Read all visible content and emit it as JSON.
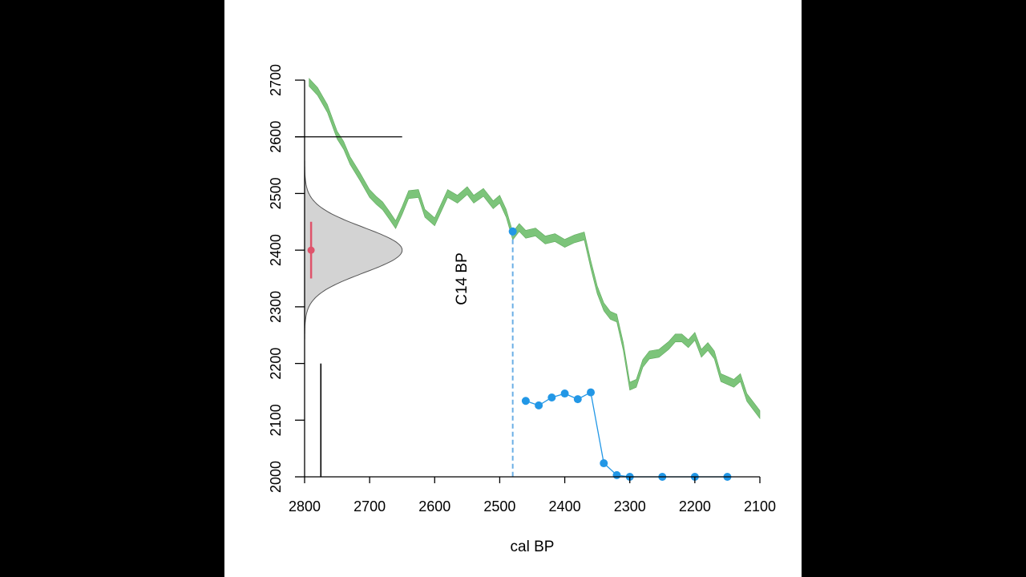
{
  "chart_data": {
    "type": "line",
    "xlabel": "cal BP",
    "ylabel": "C14 BP",
    "xlim": [
      2800,
      2100
    ],
    "ylim": [
      2000,
      2700
    ],
    "x_ticks": [
      "2800",
      "2700",
      "2600",
      "2500",
      "2400",
      "2300",
      "2200",
      "2100"
    ],
    "y_ticks": [
      "2000",
      "2100",
      "2200",
      "2300",
      "2400",
      "2500",
      "2600",
      "2700"
    ],
    "calibration_curve": {
      "color": "#7cc47a",
      "x": [
        2793,
        2780,
        2765,
        2750,
        2740,
        2730,
        2715,
        2700,
        2690,
        2680,
        2670,
        2660,
        2650,
        2640,
        2625,
        2615,
        2600,
        2590,
        2580,
        2565,
        2550,
        2540,
        2525,
        2510,
        2500,
        2490,
        2480,
        2470,
        2460,
        2445,
        2430,
        2415,
        2400,
        2385,
        2370,
        2360,
        2350,
        2340,
        2330,
        2320,
        2310,
        2300,
        2290,
        2280,
        2270,
        2255,
        2240,
        2230,
        2220,
        2210,
        2200,
        2190,
        2180,
        2170,
        2160,
        2150,
        2140,
        2130,
        2120,
        2110,
        2100
      ],
      "y": [
        2696,
        2680,
        2650,
        2603,
        2585,
        2558,
        2530,
        2500,
        2488,
        2478,
        2462,
        2445,
        2470,
        2498,
        2500,
        2465,
        2450,
        2475,
        2500,
        2490,
        2505,
        2490,
        2502,
        2480,
        2490,
        2465,
        2425,
        2440,
        2428,
        2432,
        2418,
        2422,
        2412,
        2420,
        2425,
        2375,
        2330,
        2300,
        2285,
        2280,
        2230,
        2160,
        2165,
        2200,
        2215,
        2218,
        2232,
        2245,
        2245,
        2235,
        2248,
        2218,
        2230,
        2215,
        2175,
        2170,
        2165,
        2175,
        2140,
        2125,
        2110
      ],
      "error": 7
    },
    "measurement_density": {
      "color": "#d3d3d3",
      "mean": 2400,
      "sd": 40,
      "range": [
        2200,
        2600
      ],
      "axis_x": 2800,
      "x_extent": 2650
    },
    "measurement_point": {
      "color": "#df536b",
      "x": 2790,
      "y": 2400,
      "low": 2350,
      "high": 2450
    },
    "reference_lines": {
      "y": 2600,
      "x_from": 2800,
      "x_to": 2650
    },
    "marker_bar": {
      "x": 2775,
      "y_from": 2000,
      "y_to": 2200
    },
    "calibrated_point": {
      "color": "#2297e6",
      "x": 2480,
      "y": 2433
    },
    "calibrated_series": {
      "color": "#2297e6",
      "x": [
        2460,
        2440,
        2420,
        2400,
        2380,
        2360,
        2340,
        2320,
        2300,
        2250,
        2200,
        2150
      ],
      "y": [
        2134,
        2126,
        2140,
        2147,
        2137,
        2149,
        2024,
        2003,
        2000,
        2000,
        2000,
        2000
      ]
    }
  }
}
